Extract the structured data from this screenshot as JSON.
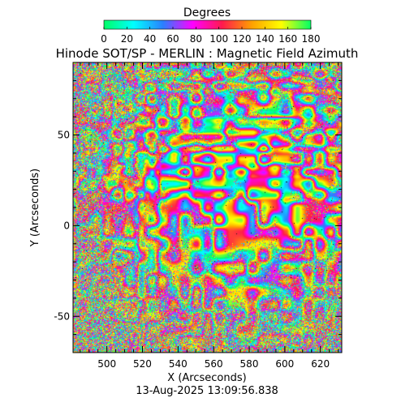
{
  "chart_data": {
    "type": "heatmap",
    "title": "Hinode SOT/SP - MERLIN : Magnetic Field Azimuth",
    "xlabel": "X (Arcseconds)",
    "ylabel": "Y (Arcseconds)",
    "xlim": [
      481,
      632
    ],
    "ylim": [
      -70,
      90
    ],
    "xticks": [
      500,
      520,
      540,
      560,
      580,
      600,
      620
    ],
    "yticks": [
      -50,
      0,
      50
    ],
    "colorbar": {
      "label": "Degrees",
      "range": [
        0,
        180
      ],
      "ticks": [
        0,
        20,
        40,
        60,
        80,
        100,
        120,
        140,
        160,
        180
      ],
      "colors": [
        "#00ff66",
        "#00ffff",
        "#2a7fff",
        "#ff00ff",
        "#ff1a4d",
        "#ffa000",
        "#ffff00",
        "#00ff66"
      ]
    },
    "timestamp": "13-Aug-2025 13:09:56.838"
  }
}
